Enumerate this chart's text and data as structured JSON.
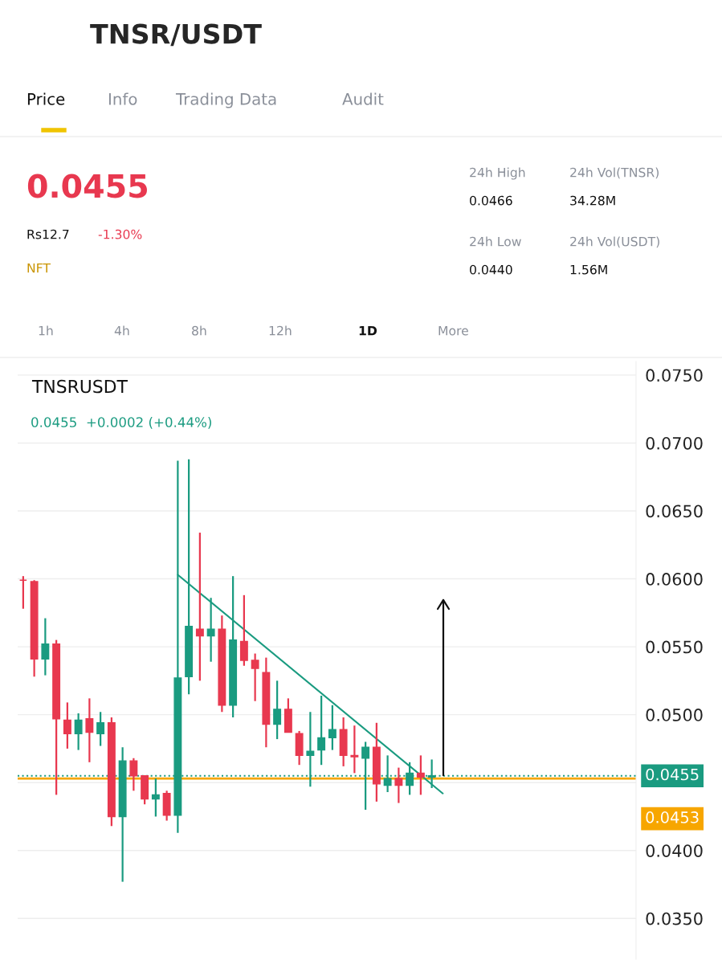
{
  "chart_data": {
    "type": "candlestick",
    "title": "TNSR/USDT",
    "annotations": [
      "Price",
      "Info",
      "Trading Data",
      "Audit",
      "0.0455",
      "Rs12.7",
      "-1.30%",
      "NFT",
      "24h High",
      "0.0466",
      "24h Low",
      "0.0440",
      "24h Vol(TNSR)",
      "34.28M",
      "24h Vol(USDT)",
      "1.56M",
      "1h",
      "4h",
      "8h",
      "12h",
      "1D",
      "More",
      "TNSRUSDT",
      "0.0455  +0.0002 (+0.44%)"
    ],
    "categories": [
      null,
      null,
      null,
      null,
      null,
      null,
      null,
      null,
      null,
      null,
      null,
      null,
      null,
      null,
      null,
      null,
      null,
      null,
      null,
      null,
      null,
      null,
      null,
      null,
      null,
      null,
      null,
      null,
      null,
      null,
      null,
      null,
      null,
      null,
      null,
      null,
      null,
      null,
      null,
      null,
      null,
      null,
      null,
      null,
      null,
      null,
      null,
      null,
      null,
      null,
      null,
      null,
      null,
      null,
      null,
      null
    ],
    "ohlc": [
      [
        0.0599,
        0.0602,
        0.0578,
        0.0599
      ],
      [
        0.0598,
        0.0599,
        0.0528,
        0.0541
      ],
      [
        0.0541,
        0.0571,
        0.0529,
        0.0552
      ],
      [
        0.0552,
        0.0555,
        0.0441,
        0.0497
      ],
      [
        0.0496,
        0.0509,
        0.0475,
        0.0486
      ],
      [
        0.0486,
        0.0501,
        0.0474,
        0.0496
      ],
      [
        0.0497,
        0.0512,
        0.0465,
        0.0487
      ],
      [
        0.0486,
        0.0502,
        0.0477,
        0.0494
      ],
      [
        0.0494,
        0.0498,
        0.0418,
        0.0425
      ],
      [
        0.0425,
        0.0476,
        0.0377,
        0.0466
      ],
      [
        0.0466,
        0.0468,
        0.0444,
        0.0455
      ],
      [
        0.0455,
        0.0455,
        0.0434,
        0.0438
      ],
      [
        0.0438,
        0.0453,
        0.0425,
        0.0441
      ],
      [
        0.0442,
        0.0444,
        0.0422,
        0.0426
      ],
      [
        0.0426,
        0.0687,
        0.0413,
        0.0527
      ],
      [
        0.0528,
        0.0688,
        0.0515,
        0.0565
      ],
      [
        0.0563,
        0.0634,
        0.0525,
        0.0558
      ],
      [
        0.0558,
        0.0586,
        0.0539,
        0.0563
      ],
      [
        0.0563,
        0.0573,
        0.0502,
        0.0507
      ],
      [
        0.0507,
        0.0602,
        0.0498,
        0.0555
      ],
      [
        0.0554,
        0.0588,
        0.0536,
        0.054
      ],
      [
        0.054,
        0.0545,
        0.051,
        0.0534
      ],
      [
        0.0531,
        0.0542,
        0.0476,
        0.0493
      ],
      [
        0.0493,
        0.0525,
        0.0482,
        0.0504
      ],
      [
        0.0504,
        0.0512,
        0.0487,
        0.0487
      ],
      [
        0.0486,
        0.0488,
        0.0463,
        0.047
      ],
      [
        0.047,
        0.0502,
        0.0447,
        0.0473
      ],
      [
        0.0474,
        0.0514,
        0.0463,
        0.0483
      ],
      [
        0.0483,
        0.0507,
        0.0474,
        0.0489
      ],
      [
        0.0489,
        0.0498,
        0.0462,
        0.047
      ],
      [
        0.047,
        0.0492,
        0.0457,
        0.0469
      ],
      [
        0.0468,
        0.048,
        0.043,
        0.0476
      ],
      [
        0.0476,
        0.0494,
        0.0436,
        0.0449
      ],
      [
        0.0448,
        0.047,
        0.0443,
        0.0453
      ],
      [
        0.0453,
        0.0461,
        0.0435,
        0.0448
      ],
      [
        0.0448,
        0.0465,
        0.0441,
        0.0457
      ],
      [
        0.0457,
        0.047,
        0.0441,
        0.0454
      ],
      [
        0.0454,
        0.0467,
        0.0446,
        0.0455
      ],
      null,
      null,
      null,
      null,
      null,
      null,
      null,
      null,
      null,
      null,
      null,
      null,
      null,
      null,
      null,
      null,
      null,
      null
    ],
    "colors": [
      "#e8384f",
      "#e8384f",
      "#1a9b80",
      "#e8384f",
      "#e8384f",
      "#1a9b80",
      "#e8384f",
      "#1a9b80",
      "#e8384f",
      "#1a9b80",
      "#e8384f",
      "#e8384f",
      "#1a9b80",
      "#e8384f",
      "#1a9b80",
      "#1a9b80",
      "#e8384f",
      "#1a9b80",
      "#e8384f",
      "#1a9b80",
      "#e8384f",
      "#e8384f",
      "#e8384f",
      "#1a9b80",
      "#e8384f",
      "#e8384f",
      "#1a9b80",
      "#1a9b80",
      "#1a9b80",
      "#e8384f",
      "#e8384f",
      "#1a9b80",
      "#e8384f",
      "#1a9b80",
      "#e8384f",
      "#1a9b80",
      "#e8384f",
      "#1a9b80",
      null,
      null,
      null,
      null,
      null,
      null,
      null,
      null,
      null,
      null,
      null,
      null,
      null,
      null,
      null,
      null,
      null,
      null
    ],
    "series": [
      {
        "type": "line",
        "color": "#1a9b80",
        "values": [
          null,
          null,
          null,
          null,
          null,
          null,
          null,
          null,
          null,
          null,
          null,
          null,
          null,
          null,
          0.0603,
          null,
          null,
          null,
          null,
          null,
          null,
          null,
          null,
          null,
          null,
          null,
          null,
          null,
          null,
          null,
          null,
          null,
          null,
          null,
          null,
          null,
          null,
          null,
          0.0442,
          null,
          null,
          null,
          null,
          null,
          null,
          null,
          null,
          null,
          null,
          null,
          null,
          null,
          null,
          null,
          null,
          null
        ]
      }
    ],
    "ref_lines": [
      {
        "axis": "y",
        "value": 0.0455,
        "label": "0.0455",
        "color": "#1a9b80",
        "line_style": "dotted"
      },
      {
        "axis": "y",
        "value": 0.0453,
        "label": "0.0453",
        "color": "#f7a600",
        "line_style": "solid"
      }
    ],
    "ylim": [
      0.032,
      0.076
    ],
    "yticks": [
      {
        "value": 0.035,
        "label": "0.0350"
      },
      {
        "value": 0.04,
        "label": "0.0400"
      },
      {
        "value": 0.045,
        "label": null
      },
      {
        "value": 0.05,
        "label": "0.0500"
      },
      {
        "value": 0.055,
        "label": "0.0550"
      },
      {
        "value": 0.06,
        "label": "0.0600"
      },
      {
        "value": 0.065,
        "label": "0.0650"
      },
      {
        "value": 0.07,
        "label": "0.0700"
      },
      {
        "value": 0.075,
        "label": "0.0750"
      }
    ],
    "grid": "y",
    "tick_labels": "y"
  }
}
